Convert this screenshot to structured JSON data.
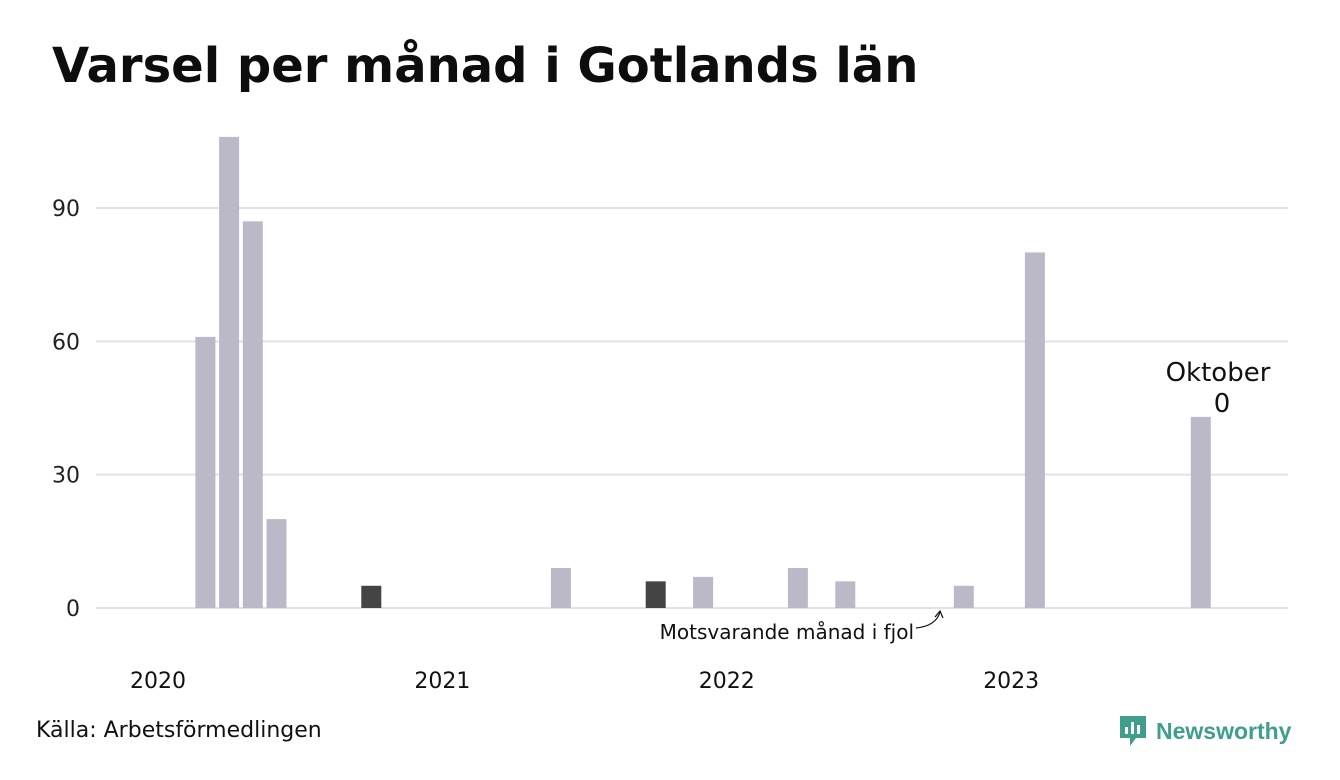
{
  "title": "Varsel per månad i Gotlands län",
  "source": "Källa: Arbetsförmedlingen",
  "brand": {
    "name": "Newsworthy",
    "icon": "newsworthy-logo-icon",
    "color": "#3f9e8c"
  },
  "colors": {
    "bar": "#bbb9c8",
    "highlight": "#444444",
    "grid": "#e2e2e2"
  },
  "chart_data": {
    "type": "bar",
    "title": "Varsel per månad i Gotlands län",
    "xlabel": "",
    "ylabel": "",
    "ylim": [
      0,
      108
    ],
    "yticks": [
      0,
      30,
      60,
      90
    ],
    "year_ticks": [
      {
        "label": "2020",
        "month_index": 0
      },
      {
        "label": "2021",
        "month_index": 12
      },
      {
        "label": "2022",
        "month_index": 24
      },
      {
        "label": "2023",
        "month_index": 36
      }
    ],
    "grid": true,
    "start": "2020-01",
    "bars": [
      {
        "month": "2020-03",
        "value": 61
      },
      {
        "month": "2020-04",
        "value": 106
      },
      {
        "month": "2020-05",
        "value": 87
      },
      {
        "month": "2020-06",
        "value": 20
      },
      {
        "month": "2020-10",
        "value": 5,
        "highlight": true
      },
      {
        "month": "2021-06",
        "value": 9
      },
      {
        "month": "2021-10",
        "value": 6,
        "highlight": true
      },
      {
        "month": "2021-12",
        "value": 7
      },
      {
        "month": "2022-04",
        "value": 9
      },
      {
        "month": "2022-06",
        "value": 6
      },
      {
        "month": "2022-11",
        "value": 5
      },
      {
        "month": "2023-02",
        "value": 80
      },
      {
        "month": "2023-09",
        "value": 43
      },
      {
        "month": "2023-10",
        "value": 0
      }
    ],
    "annotations": {
      "last_month": {
        "label": "Oktober",
        "value": "0"
      },
      "previous_year": {
        "label": "Motsvarande månad i fjol"
      }
    }
  }
}
